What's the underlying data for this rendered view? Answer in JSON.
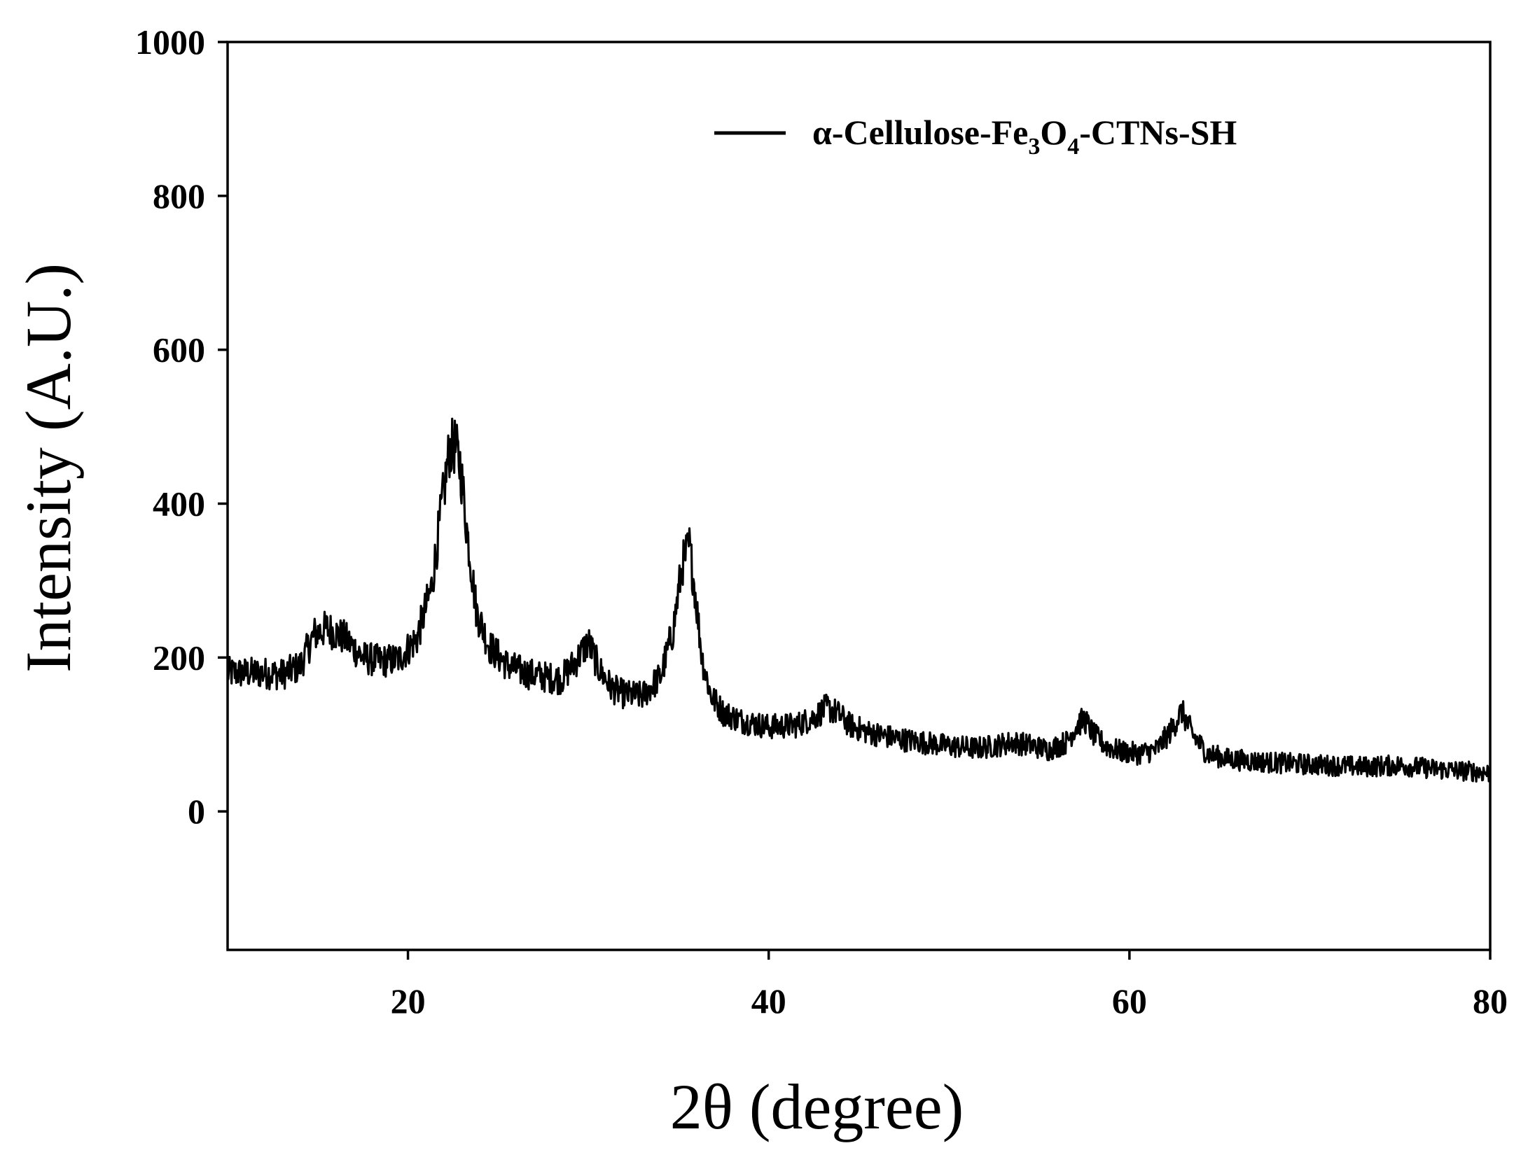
{
  "chart_data": {
    "type": "line",
    "xlabel": "2θ (degree)",
    "ylabel": "Intensity (A.U.)",
    "xlim": [
      10,
      80
    ],
    "ylim": [
      -180,
      1000
    ],
    "x_ticks": [
      20,
      40,
      60,
      80
    ],
    "x_tick_labels": [
      "20",
      "40",
      "60",
      "80"
    ],
    "y_ticks": [
      0,
      200,
      400,
      600,
      800,
      1000
    ],
    "y_tick_labels": [
      "0",
      "200",
      "400",
      "600",
      "800",
      "1000"
    ],
    "grid": false,
    "legend_position": "top-right",
    "legend": {
      "prefix": "α-Cellulose-Fe",
      "sub1": "3",
      "mid": "O",
      "sub2": "4",
      "suffix": "-CTNs-SH"
    },
    "series": [
      {
        "name": "α-Cellulose-Fe3O4-CTNs-SH",
        "color": "#000000",
        "x": [
          10,
          12,
          13,
          14,
          14.8,
          15.5,
          16.5,
          17.5,
          18.5,
          19.5,
          20.5,
          21.3,
          21.9,
          22.3,
          22.6,
          22.9,
          23.3,
          23.8,
          24.5,
          25.5,
          26.5,
          27.5,
          28.5,
          29.3,
          30,
          30.6,
          31.3,
          32,
          33,
          34,
          34.7,
          35.2,
          35.6,
          35.9,
          36.3,
          36.8,
          37.5,
          38.5,
          40,
          41.5,
          42.5,
          43.2,
          43.8,
          44.5,
          45.5,
          47,
          48.5,
          50,
          51.5,
          52.5,
          53.5,
          54.5,
          55.5,
          56.5,
          57.1,
          57.5,
          58,
          58.7,
          59.5,
          60.5,
          61.5,
          62.3,
          62.9,
          63.5,
          64.3,
          65.5,
          67,
          69,
          71,
          73,
          75,
          77,
          79,
          80
        ],
        "y": [
          180,
          180,
          178,
          188,
          230,
          238,
          225,
          200,
          195,
          198,
          225,
          290,
          400,
          470,
          475,
          450,
          360,
          260,
          215,
          190,
          180,
          175,
          172,
          195,
          220,
          185,
          160,
          152,
          150,
          175,
          235,
          320,
          345,
          290,
          200,
          150,
          128,
          118,
          110,
          112,
          122,
          135,
          128,
          112,
          103,
          95,
          90,
          85,
          82,
          85,
          90,
          86,
          80,
          90,
          112,
          120,
          100,
          85,
          78,
          75,
          80,
          105,
          130,
          100,
          75,
          68,
          65,
          62,
          60,
          58,
          60,
          55,
          52,
          50
        ]
      }
    ]
  }
}
